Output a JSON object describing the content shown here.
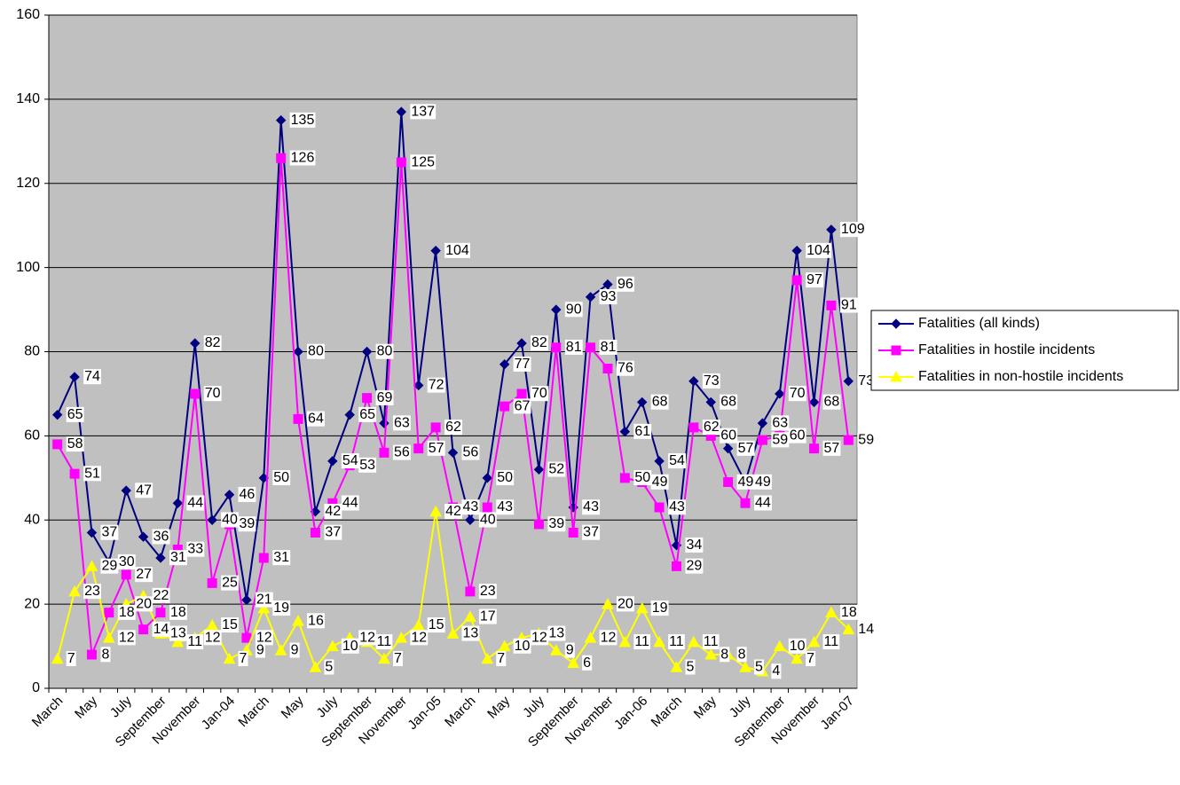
{
  "chart_data": {
    "type": "line",
    "categories": [
      "March",
      null,
      "May",
      null,
      "July",
      null,
      "September",
      null,
      "November",
      null,
      "Jan-04",
      null,
      "March",
      null,
      "May",
      null,
      "July",
      null,
      "September",
      null,
      "November",
      null,
      "Jan-05",
      null,
      "March",
      null,
      "May",
      null,
      "July",
      null,
      "September",
      null,
      "November",
      null,
      "Jan-06",
      null,
      "March",
      null,
      "May",
      null,
      "July",
      null,
      "September",
      null,
      "November",
      null,
      "Jan-07"
    ],
    "series": [
      {
        "name": "Fatalities (all kinds)",
        "color": "#000080",
        "marker": "diamond",
        "values": [
          65,
          74,
          37,
          30,
          47,
          36,
          31,
          44,
          82,
          40,
          46,
          21,
          50,
          135,
          80,
          42,
          54,
          65,
          80,
          63,
          137,
          72,
          104,
          56,
          40,
          50,
          77,
          82,
          52,
          90,
          43,
          93,
          96,
          61,
          68,
          54,
          34,
          73,
          68,
          57,
          49,
          63,
          70,
          104,
          68,
          109,
          73
        ]
      },
      {
        "name": "Fatalities in hostile incidents",
        "color": "#ff00ff",
        "marker": "square",
        "values": [
          58,
          51,
          8,
          18,
          27,
          14,
          18,
          33,
          70,
          25,
          39,
          12,
          31,
          126,
          64,
          37,
          44,
          53,
          69,
          56,
          125,
          57,
          62,
          43,
          23,
          43,
          67,
          70,
          39,
          81,
          37,
          81,
          76,
          50,
          49,
          43,
          29,
          62,
          60,
          49,
          44,
          59,
          60,
          97,
          57,
          91,
          59
        ]
      },
      {
        "name": "Fatalities in non-hostile incidents",
        "color": "#ffff00",
        "marker": "triangle",
        "values": [
          7,
          23,
          29,
          12,
          20,
          22,
          13,
          11,
          12,
          15,
          7,
          9,
          19,
          9,
          16,
          5,
          10,
          12,
          11,
          7,
          12,
          15,
          42,
          13,
          17,
          7,
          10,
          12,
          13,
          9,
          6,
          12,
          20,
          11,
          19,
          11,
          5,
          11,
          8,
          8,
          5,
          4,
          10,
          7,
          11,
          18,
          14
        ]
      }
    ],
    "ylim": [
      0,
      160
    ],
    "yticks": [
      0,
      20,
      40,
      60,
      80,
      100,
      120,
      140,
      160
    ],
    "grid": true,
    "legend": "right",
    "data_labels": true,
    "plot_background": "#c0c0c0"
  }
}
